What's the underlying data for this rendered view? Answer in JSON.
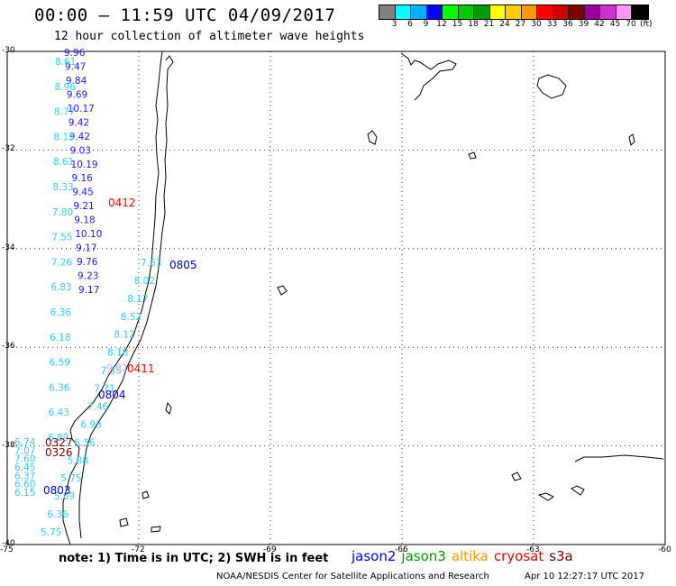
{
  "header": {
    "title": "00:00 – 11:59 UTC 04/09/2017",
    "subtitle": "12 hour collection of altimeter wave heights"
  },
  "legend": {
    "colors": [
      "#808080",
      "#00ffff",
      "#00b0ff",
      "#0000ff",
      "#00ff00",
      "#00cc00",
      "#009900",
      "#ffff00",
      "#ffcc00",
      "#ff9900",
      "#ff0000",
      "#cc0000",
      "#800000",
      "#990099",
      "#cc33cc",
      "#ff99ff",
      "#000000"
    ],
    "labels": [
      "3",
      "6",
      "9",
      "12",
      "15",
      "18",
      "21",
      "24",
      "27",
      "30",
      "33",
      "36",
      "39",
      "42",
      "45",
      "70",
      "(ft)"
    ]
  },
  "axes": {
    "lat_labels": [
      "-30",
      "-32",
      "-34",
      "-36",
      "-38",
      "-40"
    ],
    "lon_labels": [
      "-75",
      "-72",
      "-69",
      "-66",
      "-63",
      "-60"
    ]
  },
  "tracks": [
    {
      "color": "#1a1aff",
      "values": [
        "9.96",
        "9.47",
        "9.84",
        "9.69",
        "10.17",
        "9.42",
        "9.42",
        "9.03",
        "10.19",
        "9.16",
        "9.45",
        "9.21",
        "9.18",
        "10.10",
        "9.17",
        "9.76",
        "9.23",
        "9.17"
      ]
    },
    {
      "color": "#33ccff",
      "values": [
        "8.61",
        "8.96",
        "8.77",
        "8.15",
        "8.61",
        "8.33",
        "7.80",
        "7.55",
        "7.26",
        "6.83",
        "6.36",
        "6.18",
        "6.59",
        "6.36",
        "6.43",
        "6.89"
      ]
    },
    {
      "color": "#33ccff",
      "values": [
        "7.63",
        "8.02",
        "8.17",
        "8.52",
        "8.12",
        "8.18",
        "7.55",
        "7.71",
        "7.46",
        "6.93",
        "6.36",
        "5.88",
        "5.75",
        "5.69",
        "6.36",
        "5.75"
      ]
    },
    {
      "color": "#ff99ff",
      "values": [
        "9.02"
      ]
    },
    {
      "color": "#33ccff",
      "values": [
        "6.74",
        "7.07",
        "7.60",
        "6.45",
        "6.37",
        "6.60",
        "6.15"
      ]
    }
  ],
  "passes": [
    {
      "label": "0412",
      "color": "#ff0000"
    },
    {
      "label": "0805",
      "color": "#0000cc"
    },
    {
      "label": "0411",
      "color": "#ff0000"
    },
    {
      "label": "0804",
      "color": "#0000cc"
    },
    {
      "label": "0327",
      "color": "#800000"
    },
    {
      "label": "0326",
      "color": "#800000"
    },
    {
      "label": "0803",
      "color": "#0000cc"
    }
  ],
  "footer": {
    "note": "note: 1) Time is in UTC; 2) SWH is in feet",
    "satellites": [
      {
        "name": "jason2",
        "color": "#0000ff"
      },
      {
        "name": "jason3",
        "color": "#009900"
      },
      {
        "name": "altika",
        "color": "#ff9900"
      },
      {
        "name": "cryosat",
        "color": "#ff0000"
      },
      {
        "name": "s3a",
        "color": "#800000"
      }
    ],
    "credit": "NOAA/NESDIS Center for Satellite Applications and Research",
    "timestamp": "Apr 10 12:27:17 UTC 2017"
  }
}
